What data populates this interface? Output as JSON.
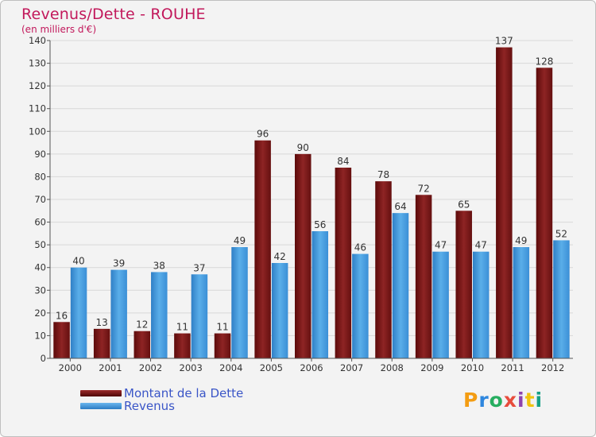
{
  "header": {
    "title": "Revenus/Dette - ROUHE",
    "subtitle": "(en milliers d'€)"
  },
  "colors": {
    "dette": "#7a1515",
    "revenus": "#3f95dc",
    "axis": "#555555",
    "grid": "#d8d8d8"
  },
  "chart_data": {
    "type": "bar",
    "title": "Revenus/Dette - ROUHE",
    "ylabel": "(en milliers d'€)",
    "xlabel": "",
    "ylim": [
      0,
      140
    ],
    "yticks": [
      0,
      10,
      20,
      30,
      40,
      50,
      60,
      70,
      80,
      90,
      100,
      110,
      120,
      130,
      140
    ],
    "categories": [
      "2000",
      "2001",
      "2002",
      "2003",
      "2004",
      "2005",
      "2006",
      "2007",
      "2008",
      "2009",
      "2010",
      "2011",
      "2012"
    ],
    "series": [
      {
        "name": "Montant de la Dette",
        "values": [
          16,
          13,
          12,
          11,
          11,
          96,
          90,
          84,
          78,
          72,
          65,
          137,
          128
        ]
      },
      {
        "name": "Revenus",
        "values": [
          40,
          39,
          38,
          37,
          49,
          42,
          56,
          46,
          64,
          47,
          47,
          49,
          52
        ]
      }
    ],
    "legend_position": "bottom-left"
  },
  "legend": {
    "items": [
      {
        "label": "Montant de la Dette"
      },
      {
        "label": "Revenus"
      }
    ]
  },
  "logo": {
    "letters": [
      "P",
      "r",
      "o",
      "x",
      "i",
      "t",
      "i"
    ],
    "colors": [
      "#f39c12",
      "#2e86de",
      "#27ae60",
      "#e74c3c",
      "#8e44ad",
      "#f1c40f",
      "#16a085"
    ]
  }
}
